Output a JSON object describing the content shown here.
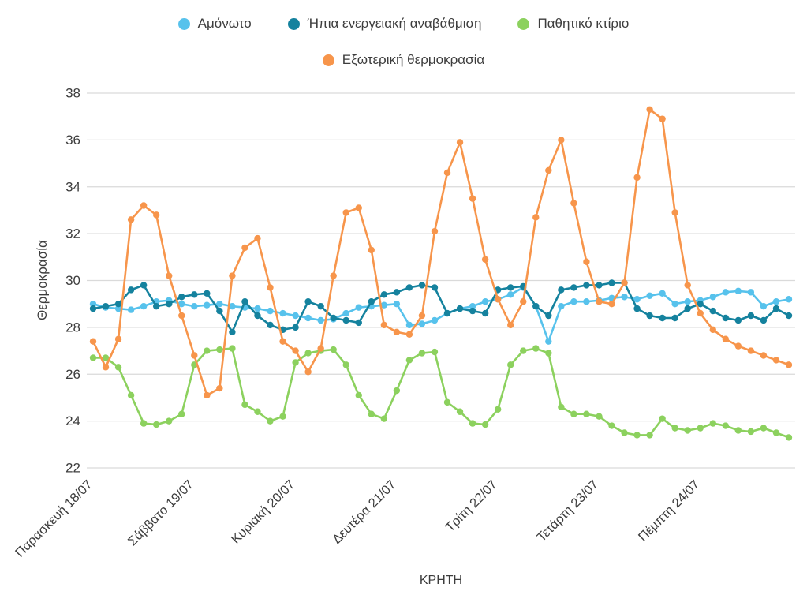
{
  "page": {
    "background": "#ffffff"
  },
  "chart_data": {
    "type": "line",
    "title": "",
    "xlabel": "ΚΡΗΤΗ",
    "ylabel": "Θερμοκρασία",
    "ylim": [
      22,
      38
    ],
    "yticks": [
      22,
      24,
      26,
      28,
      30,
      32,
      34,
      36,
      38
    ],
    "grid": "horizontal",
    "legend_position": "top",
    "points_per_day": 8,
    "x_tick_labels": [
      "Παρασκευή 18/07",
      "Σάββατο 19/07",
      "Κυριακή 20/07",
      "Δευτέρα 21/07",
      "Τρίτη 22/07",
      "Τετάρτη 23/07",
      "Πέμπτη 24/07"
    ],
    "x_tick_indices": [
      0,
      8,
      16,
      24,
      32,
      40,
      48
    ],
    "series": [
      {
        "key": "amonoto",
        "name": "Αμόνωτο",
        "color": "#57C2EC",
        "values": [
          29.0,
          28.85,
          28.8,
          28.75,
          28.9,
          29.1,
          29.15,
          29.0,
          28.9,
          28.95,
          29.0,
          28.9,
          28.85,
          28.8,
          28.7,
          28.6,
          28.5,
          28.4,
          28.3,
          28.35,
          28.6,
          28.85,
          28.9,
          28.95,
          29.0,
          28.1,
          28.15,
          28.3,
          28.6,
          28.8,
          28.9,
          29.1,
          29.2,
          29.4,
          29.7,
          28.9,
          27.4,
          28.9,
          29.1,
          29.1,
          29.15,
          29.25,
          29.3,
          29.2,
          29.35,
          29.45,
          29.0,
          29.1,
          29.15,
          29.3,
          29.5,
          29.55,
          29.5,
          28.9,
          29.1,
          29.2
        ]
      },
      {
        "key": "ipia-energeiaki-anavathmisi",
        "name": "Ήπια ενεργειακή αναβάθμιση",
        "color": "#15829E",
        "values": [
          28.8,
          28.9,
          29.0,
          29.6,
          29.8,
          28.9,
          29.0,
          29.3,
          29.4,
          29.45,
          28.7,
          27.8,
          29.1,
          28.5,
          28.1,
          27.9,
          28.0,
          29.1,
          28.9,
          28.4,
          28.3,
          28.2,
          29.1,
          29.4,
          29.5,
          29.7,
          29.8,
          29.7,
          28.6,
          28.8,
          28.7,
          28.6,
          29.6,
          29.7,
          29.75,
          28.9,
          28.5,
          29.6,
          29.7,
          29.8,
          29.8,
          29.9,
          29.9,
          28.8,
          28.5,
          28.4,
          28.4,
          28.8,
          29.0,
          28.7,
          28.4,
          28.3,
          28.5,
          28.3,
          28.8,
          28.5
        ]
      },
      {
        "key": "pathitiko-ktirio",
        "name": "Παθητικό κτίριο",
        "color": "#8CD15E",
        "values": [
          26.7,
          26.7,
          26.3,
          25.1,
          23.9,
          23.85,
          24.0,
          24.3,
          26.4,
          27.0,
          27.05,
          27.1,
          24.7,
          24.4,
          24.0,
          24.2,
          26.5,
          26.9,
          27.0,
          27.05,
          26.4,
          25.1,
          24.3,
          24.1,
          25.3,
          26.6,
          26.9,
          26.95,
          24.8,
          24.4,
          23.9,
          23.85,
          24.5,
          26.4,
          27.0,
          27.1,
          26.9,
          24.6,
          24.3,
          24.3,
          24.2,
          23.8,
          23.5,
          23.4,
          23.4,
          24.1,
          23.7,
          23.6,
          23.7,
          23.9,
          23.8,
          23.6,
          23.55,
          23.7,
          23.5,
          23.3
        ]
      },
      {
        "key": "exoteriki-thermokrasia",
        "name": "Εξωτερική θερμοκρασία",
        "color": "#F7954B",
        "values": [
          27.4,
          26.3,
          27.5,
          32.6,
          33.2,
          32.8,
          30.2,
          28.5,
          26.8,
          25.1,
          25.4,
          30.2,
          31.4,
          31.8,
          29.7,
          27.4,
          27.0,
          26.1,
          27.1,
          30.2,
          32.9,
          33.1,
          31.3,
          28.1,
          27.8,
          27.7,
          28.5,
          32.1,
          34.6,
          35.9,
          33.5,
          30.9,
          29.2,
          28.1,
          29.1,
          32.7,
          34.7,
          36.0,
          33.3,
          30.8,
          29.1,
          29.0,
          29.9,
          34.4,
          37.3,
          36.9,
          32.9,
          29.8,
          28.6,
          27.9,
          27.5,
          27.2,
          27.0,
          26.8,
          26.6,
          26.4
        ]
      }
    ]
  }
}
